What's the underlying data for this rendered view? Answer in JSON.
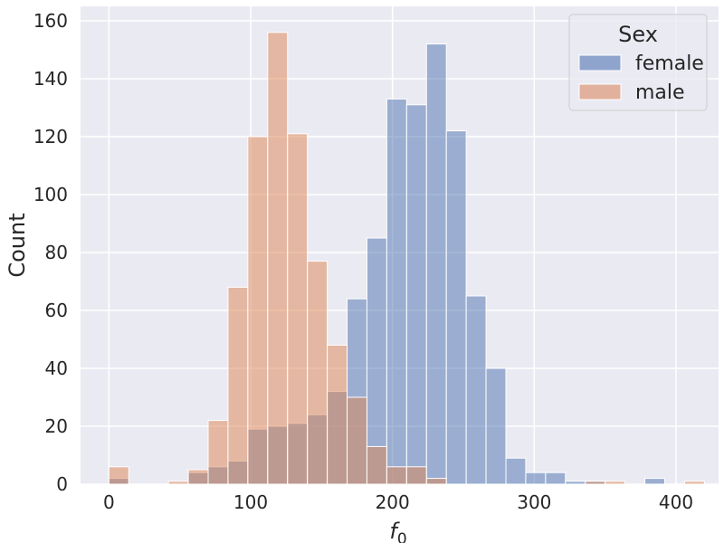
{
  "chart_data": {
    "type": "bar",
    "subtype": "histogram",
    "xlabel_base": "f",
    "xlabel_sub": "0",
    "ylabel": "Count",
    "xlim": [
      -20,
      430
    ],
    "ylim": [
      0,
      165
    ],
    "xticks": [
      0,
      100,
      200,
      300,
      400
    ],
    "yticks": [
      0,
      20,
      40,
      60,
      80,
      100,
      120,
      140,
      160
    ],
    "grid": true,
    "bin_width": 14,
    "legend": {
      "title": "Sex",
      "placement": "top-right",
      "entries": [
        {
          "label": "female",
          "color": "#8ea4cc"
        },
        {
          "label": "male",
          "color": "#e1b19d"
        }
      ]
    },
    "series": [
      {
        "name": "female",
        "color": "#4c72b0",
        "bins": [
          {
            "x0": 0,
            "count": 2
          },
          {
            "x0": 56,
            "count": 4
          },
          {
            "x0": 70,
            "count": 6
          },
          {
            "x0": 84,
            "count": 8
          },
          {
            "x0": 98,
            "count": 19
          },
          {
            "x0": 112,
            "count": 20
          },
          {
            "x0": 126,
            "count": 21
          },
          {
            "x0": 140,
            "count": 24
          },
          {
            "x0": 154,
            "count": 32
          },
          {
            "x0": 168,
            "count": 64
          },
          {
            "x0": 182,
            "count": 85
          },
          {
            "x0": 196,
            "count": 133
          },
          {
            "x0": 210,
            "count": 131
          },
          {
            "x0": 224,
            "count": 152
          },
          {
            "x0": 238,
            "count": 122
          },
          {
            "x0": 252,
            "count": 65
          },
          {
            "x0": 266,
            "count": 40
          },
          {
            "x0": 280,
            "count": 9
          },
          {
            "x0": 294,
            "count": 4
          },
          {
            "x0": 308,
            "count": 4
          },
          {
            "x0": 322,
            "count": 1
          },
          {
            "x0": 336,
            "count": 1
          },
          {
            "x0": 378,
            "count": 2
          }
        ]
      },
      {
        "name": "male",
        "color": "#dd8452",
        "bins": [
          {
            "x0": 0,
            "count": 6
          },
          {
            "x0": 42,
            "count": 1
          },
          {
            "x0": 56,
            "count": 5
          },
          {
            "x0": 70,
            "count": 22
          },
          {
            "x0": 84,
            "count": 68
          },
          {
            "x0": 98,
            "count": 120
          },
          {
            "x0": 112,
            "count": 156
          },
          {
            "x0": 126,
            "count": 121
          },
          {
            "x0": 140,
            "count": 77
          },
          {
            "x0": 154,
            "count": 48
          },
          {
            "x0": 168,
            "count": 30
          },
          {
            "x0": 182,
            "count": 13
          },
          {
            "x0": 196,
            "count": 6
          },
          {
            "x0": 210,
            "count": 6
          },
          {
            "x0": 224,
            "count": 2
          },
          {
            "x0": 336,
            "count": 1
          },
          {
            "x0": 350,
            "count": 1
          },
          {
            "x0": 406,
            "count": 1
          }
        ]
      }
    ]
  }
}
